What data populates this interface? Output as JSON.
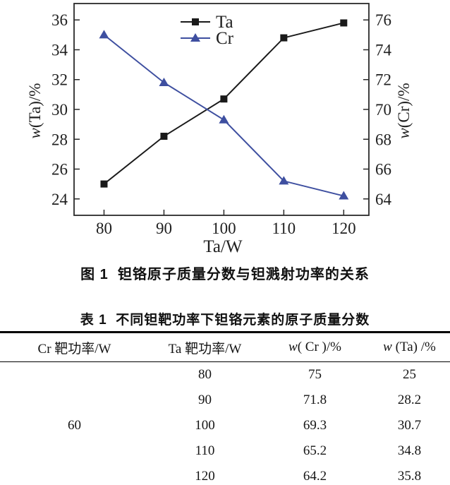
{
  "figure": {
    "caption": "图 1  钽铬原子质量分数与钽溅射功率的关系"
  },
  "chart_data": {
    "type": "line",
    "x": [
      80,
      90,
      100,
      110,
      120
    ],
    "series": [
      {
        "name": "Ta",
        "axis": "left",
        "values": [
          25,
          28.2,
          30.7,
          34.8,
          35.8
        ],
        "color": "#1a1a1a",
        "marker": "square"
      },
      {
        "name": "Cr",
        "axis": "right",
        "values": [
          75,
          71.8,
          69.3,
          65.2,
          64.2
        ],
        "color": "#3e4fa0",
        "marker": "triangle"
      }
    ],
    "xlabel": "Ta/W",
    "ylabel_left": "w(Ta)/%",
    "ylabel_right": "w(Cr)/%",
    "x_ticks": [
      80,
      90,
      100,
      110,
      120
    ],
    "y_ticks_left": [
      24,
      26,
      28,
      30,
      32,
      34,
      36
    ],
    "y_ticks_right": [
      64,
      66,
      68,
      70,
      72,
      74,
      76
    ],
    "xlim": [
      75,
      124.2
    ],
    "ylim_left": [
      22.9,
      37.1
    ],
    "ylim_right": [
      62.9,
      77.1
    ],
    "legend_position": "top-center",
    "legend": [
      "Ta",
      "Cr"
    ],
    "grid": false
  },
  "table": {
    "title": "表 1  不同钽靶功率下钽铬元素的原子质量分数",
    "headers": [
      "Cr 靶功率/W",
      "Ta 靶功率/W",
      "w( Cr )/%",
      "w (Ta) /%"
    ],
    "cr_power": "60",
    "rows": [
      {
        "ta_power": "80",
        "w_cr": "75",
        "w_ta": "25"
      },
      {
        "ta_power": "90",
        "w_cr": "71.8",
        "w_ta": "28.2"
      },
      {
        "ta_power": "100",
        "w_cr": "69.3",
        "w_ta": "30.7"
      },
      {
        "ta_power": "110",
        "w_cr": "65.2",
        "w_ta": "34.8"
      },
      {
        "ta_power": "120",
        "w_cr": "64.2",
        "w_ta": "35.8"
      }
    ]
  },
  "colors": {
    "ta_series": "#1a1a1a",
    "cr_series": "#3e4fa0",
    "axis": "#2a2a2a",
    "rule": "#000000"
  }
}
